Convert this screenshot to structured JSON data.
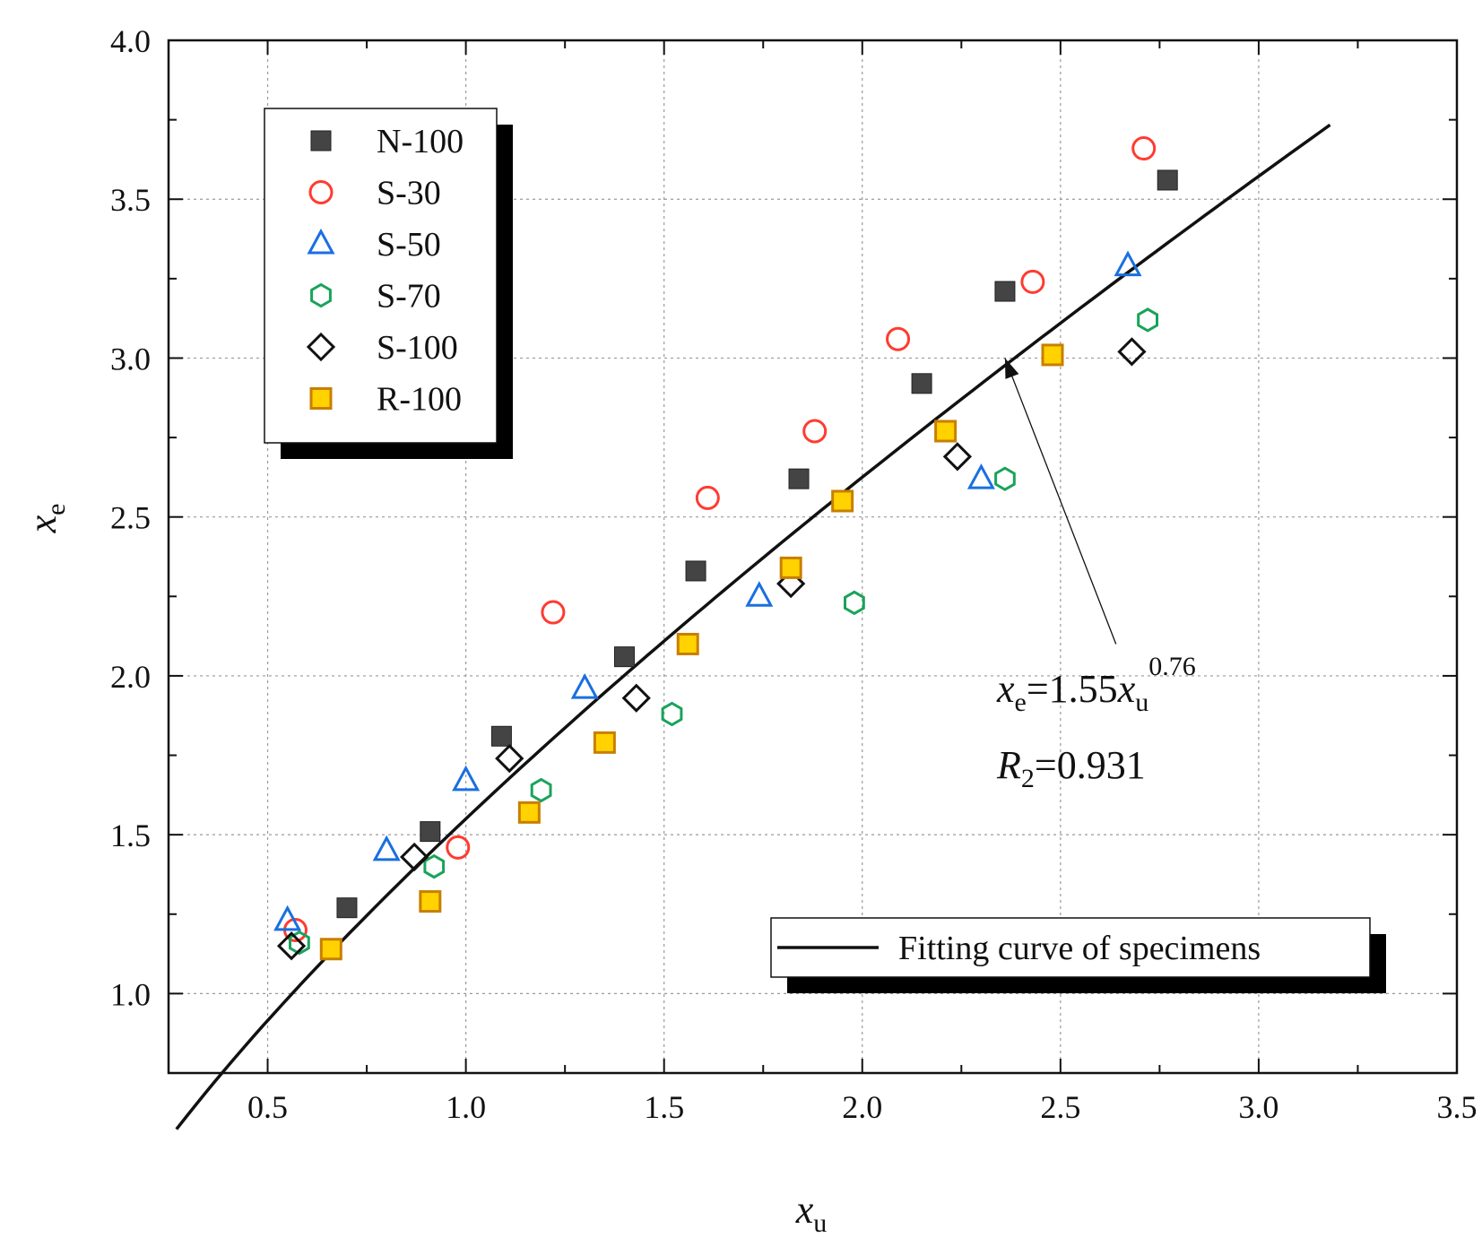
{
  "chart_data": {
    "type": "scatter",
    "title": "",
    "xlabel": "x",
    "xlabel_sub": "u",
    "ylabel": "x",
    "ylabel_sub": "e",
    "xlim": [
      0.25,
      3.5
    ],
    "ylim": [
      0.75,
      4.0
    ],
    "xticks": [
      "0.5",
      "1.0",
      "1.5",
      "2.0",
      "2.5",
      "3.0",
      "3.5"
    ],
    "yticks": [
      "1.0",
      "1.5",
      "2.0",
      "2.5",
      "3.0",
      "3.5",
      "4.0"
    ],
    "grid": true,
    "legend_position": "top-left",
    "series": [
      {
        "name": "N-100",
        "marker": "filled-square",
        "color": "#444444",
        "x": [
          0.7,
          0.91,
          1.09,
          1.4,
          1.58,
          1.84,
          2.15,
          2.36,
          2.77
        ],
        "y": [
          1.27,
          1.51,
          1.81,
          2.06,
          2.33,
          2.62,
          2.92,
          3.21,
          3.56
        ]
      },
      {
        "name": "S-30",
        "marker": "circle",
        "color": "#ff3b30",
        "x": [
          0.57,
          0.98,
          1.22,
          1.61,
          1.88,
          2.09,
          2.43,
          2.71
        ],
        "y": [
          1.2,
          1.46,
          2.2,
          2.56,
          2.77,
          3.06,
          3.24,
          3.66
        ]
      },
      {
        "name": "S-50",
        "marker": "triangle",
        "color": "#1a6fe0",
        "x": [
          0.55,
          0.8,
          1.0,
          1.3,
          1.74,
          2.3,
          2.67
        ],
        "y": [
          1.23,
          1.45,
          1.67,
          1.96,
          2.25,
          2.62,
          3.29
        ]
      },
      {
        "name": "S-70",
        "marker": "hexagon",
        "color": "#1aa35a",
        "x": [
          0.58,
          0.92,
          1.19,
          1.52,
          1.98,
          2.36,
          2.72
        ],
        "y": [
          1.16,
          1.4,
          1.64,
          1.88,
          2.23,
          2.62,
          3.12
        ]
      },
      {
        "name": "S-100",
        "marker": "diamond",
        "color": "#111111",
        "x": [
          0.56,
          0.87,
          1.11,
          1.43,
          1.82,
          2.24,
          2.68
        ],
        "y": [
          1.15,
          1.43,
          1.74,
          1.93,
          2.29,
          2.69,
          3.02
        ]
      },
      {
        "name": "R-100",
        "marker": "filled-square-outlined",
        "color": "#ffd200",
        "x": [
          0.66,
          0.91,
          1.16,
          1.35,
          1.56,
          1.82,
          1.95,
          2.21,
          2.48
        ],
        "y": [
          1.14,
          1.29,
          1.57,
          1.79,
          2.1,
          2.34,
          2.55,
          2.77,
          3.01
        ]
      }
    ],
    "fit": {
      "label": "Fitting curve of specimens",
      "coef": 1.55,
      "exponent": 0.76,
      "x_range": [
        0.27,
        3.18
      ],
      "equation": {
        "lhs": "x",
        "lhs_sub": "e",
        "eq": "=1.55",
        "rhs": "x",
        "rhs_sub": "u",
        "exp": "0.76"
      },
      "r2": {
        "sym": "R",
        "sub": "2",
        "value": "=0.931"
      },
      "arrow_target": [
        2.36,
        3.0
      ],
      "arrow_origin": [
        2.64,
        2.1
      ]
    }
  }
}
